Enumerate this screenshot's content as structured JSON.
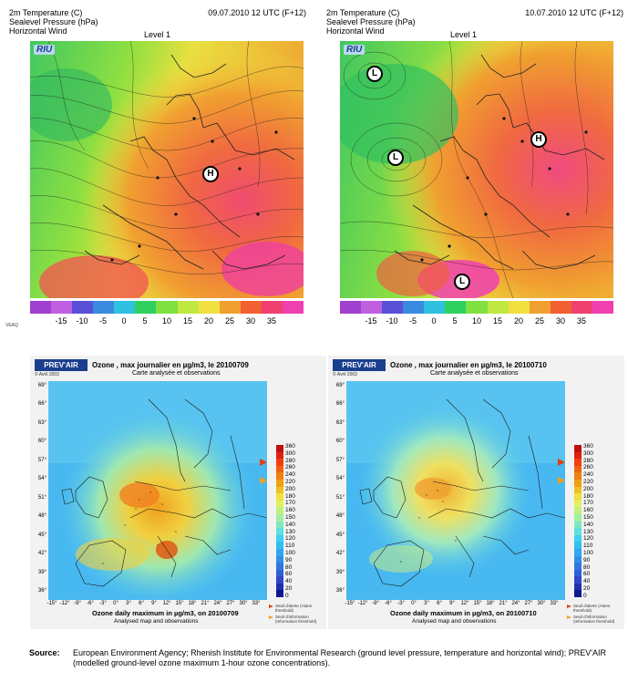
{
  "temperature_maps": [
    {
      "title_lines": [
        "2m Temperature (C)",
        "Sealevel Pressure (hPa)",
        "Horizontal Wind"
      ],
      "date": "09.07.2010 12 UTC (F+12)",
      "level": "Level 1",
      "logo": "RIU",
      "pressure_centers": [
        {
          "label": "H"
        }
      ]
    },
    {
      "title_lines": [
        "2m Temperature (C)",
        "Sealevel Pressure (hPa)",
        "Horizontal Wind"
      ],
      "date": "10.07.2010 12 UTC (F+12)",
      "level": "Level  1",
      "logo": "RIU",
      "pressure_centers": [
        {
          "label": "L"
        },
        {
          "label": "L"
        },
        {
          "label": "H"
        },
        {
          "label": "L"
        }
      ]
    }
  ],
  "temperature_scale": {
    "ticks": [
      "-15",
      "-10",
      "-5",
      "0",
      "5",
      "10",
      "15",
      "20",
      "25",
      "30",
      "35"
    ],
    "colors": [
      "#a040d0",
      "#c060e0",
      "#5a50d8",
      "#3a8ae0",
      "#30c0e0",
      "#30d060",
      "#80e040",
      "#c0e840",
      "#f0e040",
      "#f0a030",
      "#f06030",
      "#f04070",
      "#f040b0"
    ],
    "corner_label": "VEAQ"
  },
  "ozone_maps": [
    {
      "brand": "PREV'AIR",
      "copyright": "© Avril 2003",
      "title": "Ozone , max journalier en µg/m3, le 20100709",
      "subtitle": "Carte analysée et observations",
      "caption": "Ozone daily maximum in µg/m3, on 20100709",
      "caption_sub": "Analysed map and observations"
    },
    {
      "brand": "PREV'AIR",
      "copyright": "© Avril 2003",
      "title": "Ozone , max journalier en µg/m3, le 20100710",
      "subtitle": "Carte analysée et observations",
      "caption": "Ozone daily maximum in µg/m3, on 20100710",
      "caption_sub": "Analysed map and observations"
    }
  ],
  "ozone_axes": {
    "latitudes": [
      "69°",
      "66°",
      "63°",
      "60°",
      "57°",
      "54°",
      "51°",
      "48°",
      "45°",
      "42°",
      "39°",
      "36°"
    ],
    "longitudes": [
      "-15°",
      "-12°",
      "-9°",
      "-6°",
      "-3°",
      "0°",
      "3°",
      "6°",
      "9°",
      "12°",
      "15°",
      "18°",
      "21°",
      "24°",
      "27°",
      "30°",
      "33°"
    ]
  },
  "ozone_scale": {
    "ticks": [
      "360",
      "300",
      "280",
      "260",
      "240",
      "220",
      "200",
      "180",
      "170",
      "160",
      "150",
      "140",
      "130",
      "120",
      "110",
      "100",
      "90",
      "80",
      "60",
      "40",
      "20",
      "0"
    ],
    "colors": [
      "#c01010",
      "#e02010",
      "#f04010",
      "#f06010",
      "#f08010",
      "#f0a010",
      "#f0c020",
      "#f0e040",
      "#e0f060",
      "#c0f080",
      "#a0f0a0",
      "#80e8c0",
      "#60e0e0",
      "#40d0f0",
      "#30c0f0",
      "#30a8f0",
      "#3090e8",
      "#3078e0",
      "#3060d8",
      "#3048c8",
      "#2030b0",
      "#101890"
    ],
    "alarm_label": "Seuil d'alerte (Alarm threshold)",
    "info_label": "Seuil d'information (Information threshold)"
  },
  "source": {
    "label": "Source:",
    "text": "European Environment Agency; Rhenish Institute for Environmental Research (ground level pressure, temperature and horizontal wind); PREV'AIR (modelled ground-level ozone maximum 1-hour ozone concentrations)."
  }
}
